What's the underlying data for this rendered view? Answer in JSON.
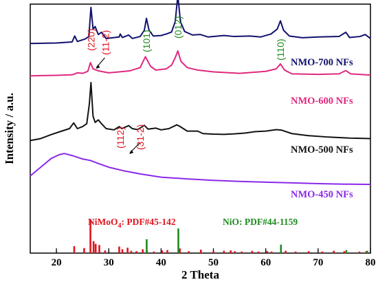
{
  "chart_data": {
    "type": "line",
    "xlabel": "2 Theta",
    "ylabel": "Intensity / a.u.",
    "xlim": [
      15,
      80
    ],
    "xticks": [
      20,
      30,
      40,
      50,
      60,
      70,
      80
    ],
    "grid": false,
    "series": [
      {
        "name": "NMO-700 NFs",
        "color": "#10106e",
        "baseline": 0.86,
        "points": [
          [
            15,
            0.842
          ],
          [
            20,
            0.844
          ],
          [
            23,
            0.848
          ],
          [
            23.5,
            0.872
          ],
          [
            24,
            0.85
          ],
          [
            25.5,
            0.86
          ],
          [
            26.2,
            0.87
          ],
          [
            26.6,
            0.987
          ],
          [
            27.0,
            0.9
          ],
          [
            27.4,
            0.91
          ],
          [
            28,
            0.878
          ],
          [
            28.6,
            0.887
          ],
          [
            29.5,
            0.862
          ],
          [
            32,
            0.868
          ],
          [
            32.2,
            0.88
          ],
          [
            32.6,
            0.866
          ],
          [
            33.8,
            0.876
          ],
          [
            34.5,
            0.862
          ],
          [
            36,
            0.87
          ],
          [
            36.8,
            0.895
          ],
          [
            37.2,
            0.943
          ],
          [
            37.7,
            0.895
          ],
          [
            38.5,
            0.872
          ],
          [
            40,
            0.874
          ],
          [
            41,
            0.88
          ],
          [
            42,
            0.888
          ],
          [
            42.7,
            0.93
          ],
          [
            43.2,
            1.035
          ],
          [
            43.7,
            0.93
          ],
          [
            44.5,
            0.89
          ],
          [
            46,
            0.876
          ],
          [
            47.5,
            0.878
          ],
          [
            49,
            0.868
          ],
          [
            52,
            0.874
          ],
          [
            54,
            0.87
          ],
          [
            57,
            0.872
          ],
          [
            59,
            0.868
          ],
          [
            61,
            0.88
          ],
          [
            62.2,
            0.9
          ],
          [
            62.8,
            0.933
          ],
          [
            63.4,
            0.895
          ],
          [
            64.5,
            0.872
          ],
          [
            67,
            0.865
          ],
          [
            70,
            0.868
          ],
          [
            74,
            0.87
          ],
          [
            75.3,
            0.887
          ],
          [
            76,
            0.866
          ],
          [
            78,
            0.87
          ],
          [
            79,
            0.878
          ],
          [
            80,
            0.862
          ]
        ]
      },
      {
        "name": "NMO-600 NFs",
        "color": "#e0287e",
        "baseline": 0.72,
        "points": [
          [
            15,
            0.712
          ],
          [
            20,
            0.714
          ],
          [
            23,
            0.716
          ],
          [
            24,
            0.724
          ],
          [
            25,
            0.722
          ],
          [
            26,
            0.73
          ],
          [
            26.5,
            0.765
          ],
          [
            27,
            0.74
          ],
          [
            28,
            0.732
          ],
          [
            30,
            0.724
          ],
          [
            32,
            0.728
          ],
          [
            34,
            0.732
          ],
          [
            36,
            0.745
          ],
          [
            37,
            0.789
          ],
          [
            38,
            0.75
          ],
          [
            39,
            0.735
          ],
          [
            41,
            0.74
          ],
          [
            42,
            0.755
          ],
          [
            42.7,
            0.785
          ],
          [
            43.2,
            0.812
          ],
          [
            43.8,
            0.77
          ],
          [
            45,
            0.745
          ],
          [
            47,
            0.735
          ],
          [
            50,
            0.728
          ],
          [
            55,
            0.722
          ],
          [
            60,
            0.73
          ],
          [
            62,
            0.74
          ],
          [
            62.8,
            0.76
          ],
          [
            63.6,
            0.735
          ],
          [
            65,
            0.72
          ],
          [
            70,
            0.718
          ],
          [
            74,
            0.72
          ],
          [
            75.3,
            0.733
          ],
          [
            76.2,
            0.72
          ],
          [
            80,
            0.715
          ]
        ]
      },
      {
        "name": "NMO-500 NFs",
        "color": "#111111",
        "baseline": 0.47,
        "points": [
          [
            15,
            0.452
          ],
          [
            17,
            0.46
          ],
          [
            19,
            0.476
          ],
          [
            21,
            0.49
          ],
          [
            22.5,
            0.5
          ],
          [
            23.3,
            0.523
          ],
          [
            24,
            0.5
          ],
          [
            25,
            0.508
          ],
          [
            25.8,
            0.52
          ],
          [
            26.3,
            0.6
          ],
          [
            26.6,
            0.685
          ],
          [
            27,
            0.55
          ],
          [
            27.4,
            0.525
          ],
          [
            28,
            0.535
          ],
          [
            28.6,
            0.52
          ],
          [
            29.5,
            0.5
          ],
          [
            31,
            0.495
          ],
          [
            32,
            0.508
          ],
          [
            32.5,
            0.5
          ],
          [
            33.8,
            0.512
          ],
          [
            34.5,
            0.5
          ],
          [
            35.5,
            0.496
          ],
          [
            36.8,
            0.513
          ],
          [
            37.5,
            0.498
          ],
          [
            39,
            0.502
          ],
          [
            40,
            0.495
          ],
          [
            41.5,
            0.5
          ],
          [
            43,
            0.515
          ],
          [
            43.5,
            0.51
          ],
          [
            45,
            0.49
          ],
          [
            47,
            0.49
          ],
          [
            48,
            0.48
          ],
          [
            50,
            0.478
          ],
          [
            52,
            0.477
          ],
          [
            54,
            0.479
          ],
          [
            56,
            0.482
          ],
          [
            58,
            0.488
          ],
          [
            60,
            0.49
          ],
          [
            62,
            0.496
          ],
          [
            63,
            0.494
          ],
          [
            65,
            0.48
          ],
          [
            68,
            0.472
          ],
          [
            72,
            0.466
          ],
          [
            76,
            0.462
          ],
          [
            80,
            0.46
          ]
        ]
      },
      {
        "name": "NMO-450 NFs",
        "color": "#8a28e8",
        "baseline": 0.3,
        "points": [
          [
            15,
            0.31
          ],
          [
            17,
            0.345
          ],
          [
            19,
            0.38
          ],
          [
            20.5,
            0.395
          ],
          [
            21.5,
            0.4
          ],
          [
            23,
            0.392
          ],
          [
            25,
            0.378
          ],
          [
            26.5,
            0.372
          ],
          [
            28,
            0.36
          ],
          [
            30,
            0.345
          ],
          [
            33,
            0.33
          ],
          [
            36,
            0.318
          ],
          [
            40,
            0.305
          ],
          [
            45,
            0.298
          ],
          [
            50,
            0.292
          ],
          [
            55,
            0.288
          ],
          [
            60,
            0.285
          ],
          [
            65,
            0.282
          ],
          [
            70,
            0.279
          ],
          [
            75,
            0.277
          ],
          [
            80,
            0.276
          ]
        ]
      }
    ],
    "reference_patterns": [
      {
        "name": "NiMoO₄: PDF#45-142",
        "label_prefix": "NiMoO",
        "label_sub": "4",
        "label_suffix": ": PDF#45-142",
        "color": "#e0141e",
        "lines": [
          [
            23.4,
            0.18
          ],
          [
            25.3,
            0.13
          ],
          [
            26.5,
            0.88
          ],
          [
            27.1,
            0.31
          ],
          [
            27.5,
            0.24
          ],
          [
            28.2,
            0.21
          ],
          [
            29.3,
            0.07
          ],
          [
            32.0,
            0.17
          ],
          [
            32.6,
            0.1
          ],
          [
            33.6,
            0.14
          ],
          [
            34.3,
            0.06
          ],
          [
            35.3,
            0.05
          ],
          [
            36.5,
            0.1
          ],
          [
            37.3,
            0.06
          ],
          [
            38.6,
            0.04
          ],
          [
            40.2,
            0.07
          ],
          [
            41.2,
            0.08
          ],
          [
            43.6,
            0.12
          ],
          [
            45.3,
            0.05
          ],
          [
            47.6,
            0.09
          ],
          [
            50.0,
            0.05
          ],
          [
            52.0,
            0.06
          ],
          [
            53.3,
            0.07
          ],
          [
            54.1,
            0.05
          ],
          [
            55.4,
            0.04
          ],
          [
            57.4,
            0.06
          ],
          [
            58.6,
            0.04
          ],
          [
            60.3,
            0.05
          ],
          [
            61.1,
            0.04
          ],
          [
            63.8,
            0.06
          ],
          [
            65.7,
            0.04
          ],
          [
            68.2,
            0.05
          ],
          [
            70.8,
            0.04
          ],
          [
            73.0,
            0.06
          ],
          [
            75.0,
            0.05
          ],
          [
            77.9,
            0.04
          ],
          [
            79.2,
            0.05
          ]
        ]
      },
      {
        "name": "NiO: PDF#44-1159",
        "label_prefix": "NiO: PDF#44-1159",
        "label_sub": "",
        "label_suffix": "",
        "color": "#1e8a1e",
        "lines": [
          [
            37.25,
            0.36
          ],
          [
            43.3,
            0.64
          ],
          [
            62.9,
            0.22
          ],
          [
            75.4,
            0.08
          ],
          [
            79.4,
            0.06
          ]
        ]
      }
    ],
    "annotations": {
      "nmo700": [
        {
          "text": "(220)",
          "x": 26.6,
          "color": "#e0141e"
        },
        {
          "text": "(11-2)",
          "x": 27.4,
          "color": "#e0141e"
        },
        {
          "text": "(101)",
          "x": 37.2,
          "color": "#1e8a1e"
        },
        {
          "text": "(012)",
          "x": 43.2,
          "color": "#1e8a1e"
        },
        {
          "text": "(110)",
          "x": 62.8,
          "color": "#1e8a1e"
        }
      ],
      "nmo500": [
        {
          "text": "(112)",
          "x": 32.2,
          "color": "#e0141e"
        },
        {
          "text": "(31-2)",
          "x": 33.8,
          "color": "#e0141e"
        }
      ]
    }
  }
}
